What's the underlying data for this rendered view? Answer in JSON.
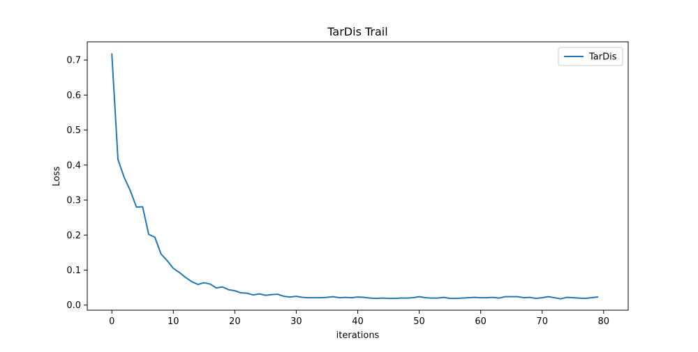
{
  "chart_data": {
    "type": "line",
    "title": "TarDis Trail",
    "xlabel": "iterations",
    "ylabel": "Loss",
    "xlim": [
      -4,
      84
    ],
    "ylim": [
      -0.0145,
      0.752
    ],
    "xticks": [
      0,
      10,
      20,
      30,
      40,
      50,
      60,
      70,
      80
    ],
    "xtick_labels": [
      "0",
      "10",
      "20",
      "30",
      "40",
      "50",
      "60",
      "70",
      "80"
    ],
    "yticks": [
      0.0,
      0.1,
      0.2,
      0.3,
      0.4,
      0.5,
      0.6,
      0.7
    ],
    "ytick_labels": [
      "0.0",
      "0.1",
      "0.2",
      "0.3",
      "0.4",
      "0.5",
      "0.6",
      "0.7"
    ],
    "grid": false,
    "legend_position": "top-right",
    "series": [
      {
        "name": "TarDis",
        "color": "#1f77b4",
        "x": [
          0,
          1,
          2,
          3,
          4,
          5,
          6,
          7,
          8,
          9,
          10,
          11,
          12,
          13,
          14,
          15,
          16,
          17,
          18,
          19,
          20,
          21,
          22,
          23,
          24,
          25,
          26,
          27,
          28,
          29,
          30,
          31,
          32,
          33,
          34,
          35,
          36,
          37,
          38,
          39,
          40,
          41,
          42,
          43,
          44,
          45,
          46,
          47,
          48,
          49,
          50,
          51,
          52,
          53,
          54,
          55,
          56,
          57,
          58,
          59,
          60,
          61,
          62,
          63,
          64,
          65,
          66,
          67,
          68,
          69,
          70,
          71,
          72,
          73,
          74,
          75,
          76,
          77,
          78,
          79
        ],
        "y": [
          0.717,
          0.416,
          0.365,
          0.327,
          0.28,
          0.281,
          0.202,
          0.194,
          0.146,
          0.127,
          0.105,
          0.093,
          0.079,
          0.067,
          0.059,
          0.064,
          0.06,
          0.049,
          0.052,
          0.044,
          0.041,
          0.035,
          0.034,
          0.029,
          0.032,
          0.028,
          0.03,
          0.031,
          0.025,
          0.023,
          0.025,
          0.022,
          0.021,
          0.021,
          0.021,
          0.022,
          0.024,
          0.021,
          0.022,
          0.021,
          0.023,
          0.022,
          0.02,
          0.019,
          0.02,
          0.019,
          0.019,
          0.02,
          0.02,
          0.021,
          0.024,
          0.021,
          0.02,
          0.02,
          0.022,
          0.019,
          0.019,
          0.02,
          0.021,
          0.022,
          0.021,
          0.021,
          0.022,
          0.02,
          0.024,
          0.024,
          0.024,
          0.021,
          0.022,
          0.019,
          0.021,
          0.024,
          0.021,
          0.018,
          0.022,
          0.021,
          0.02,
          0.019,
          0.021,
          0.023
        ]
      }
    ]
  }
}
